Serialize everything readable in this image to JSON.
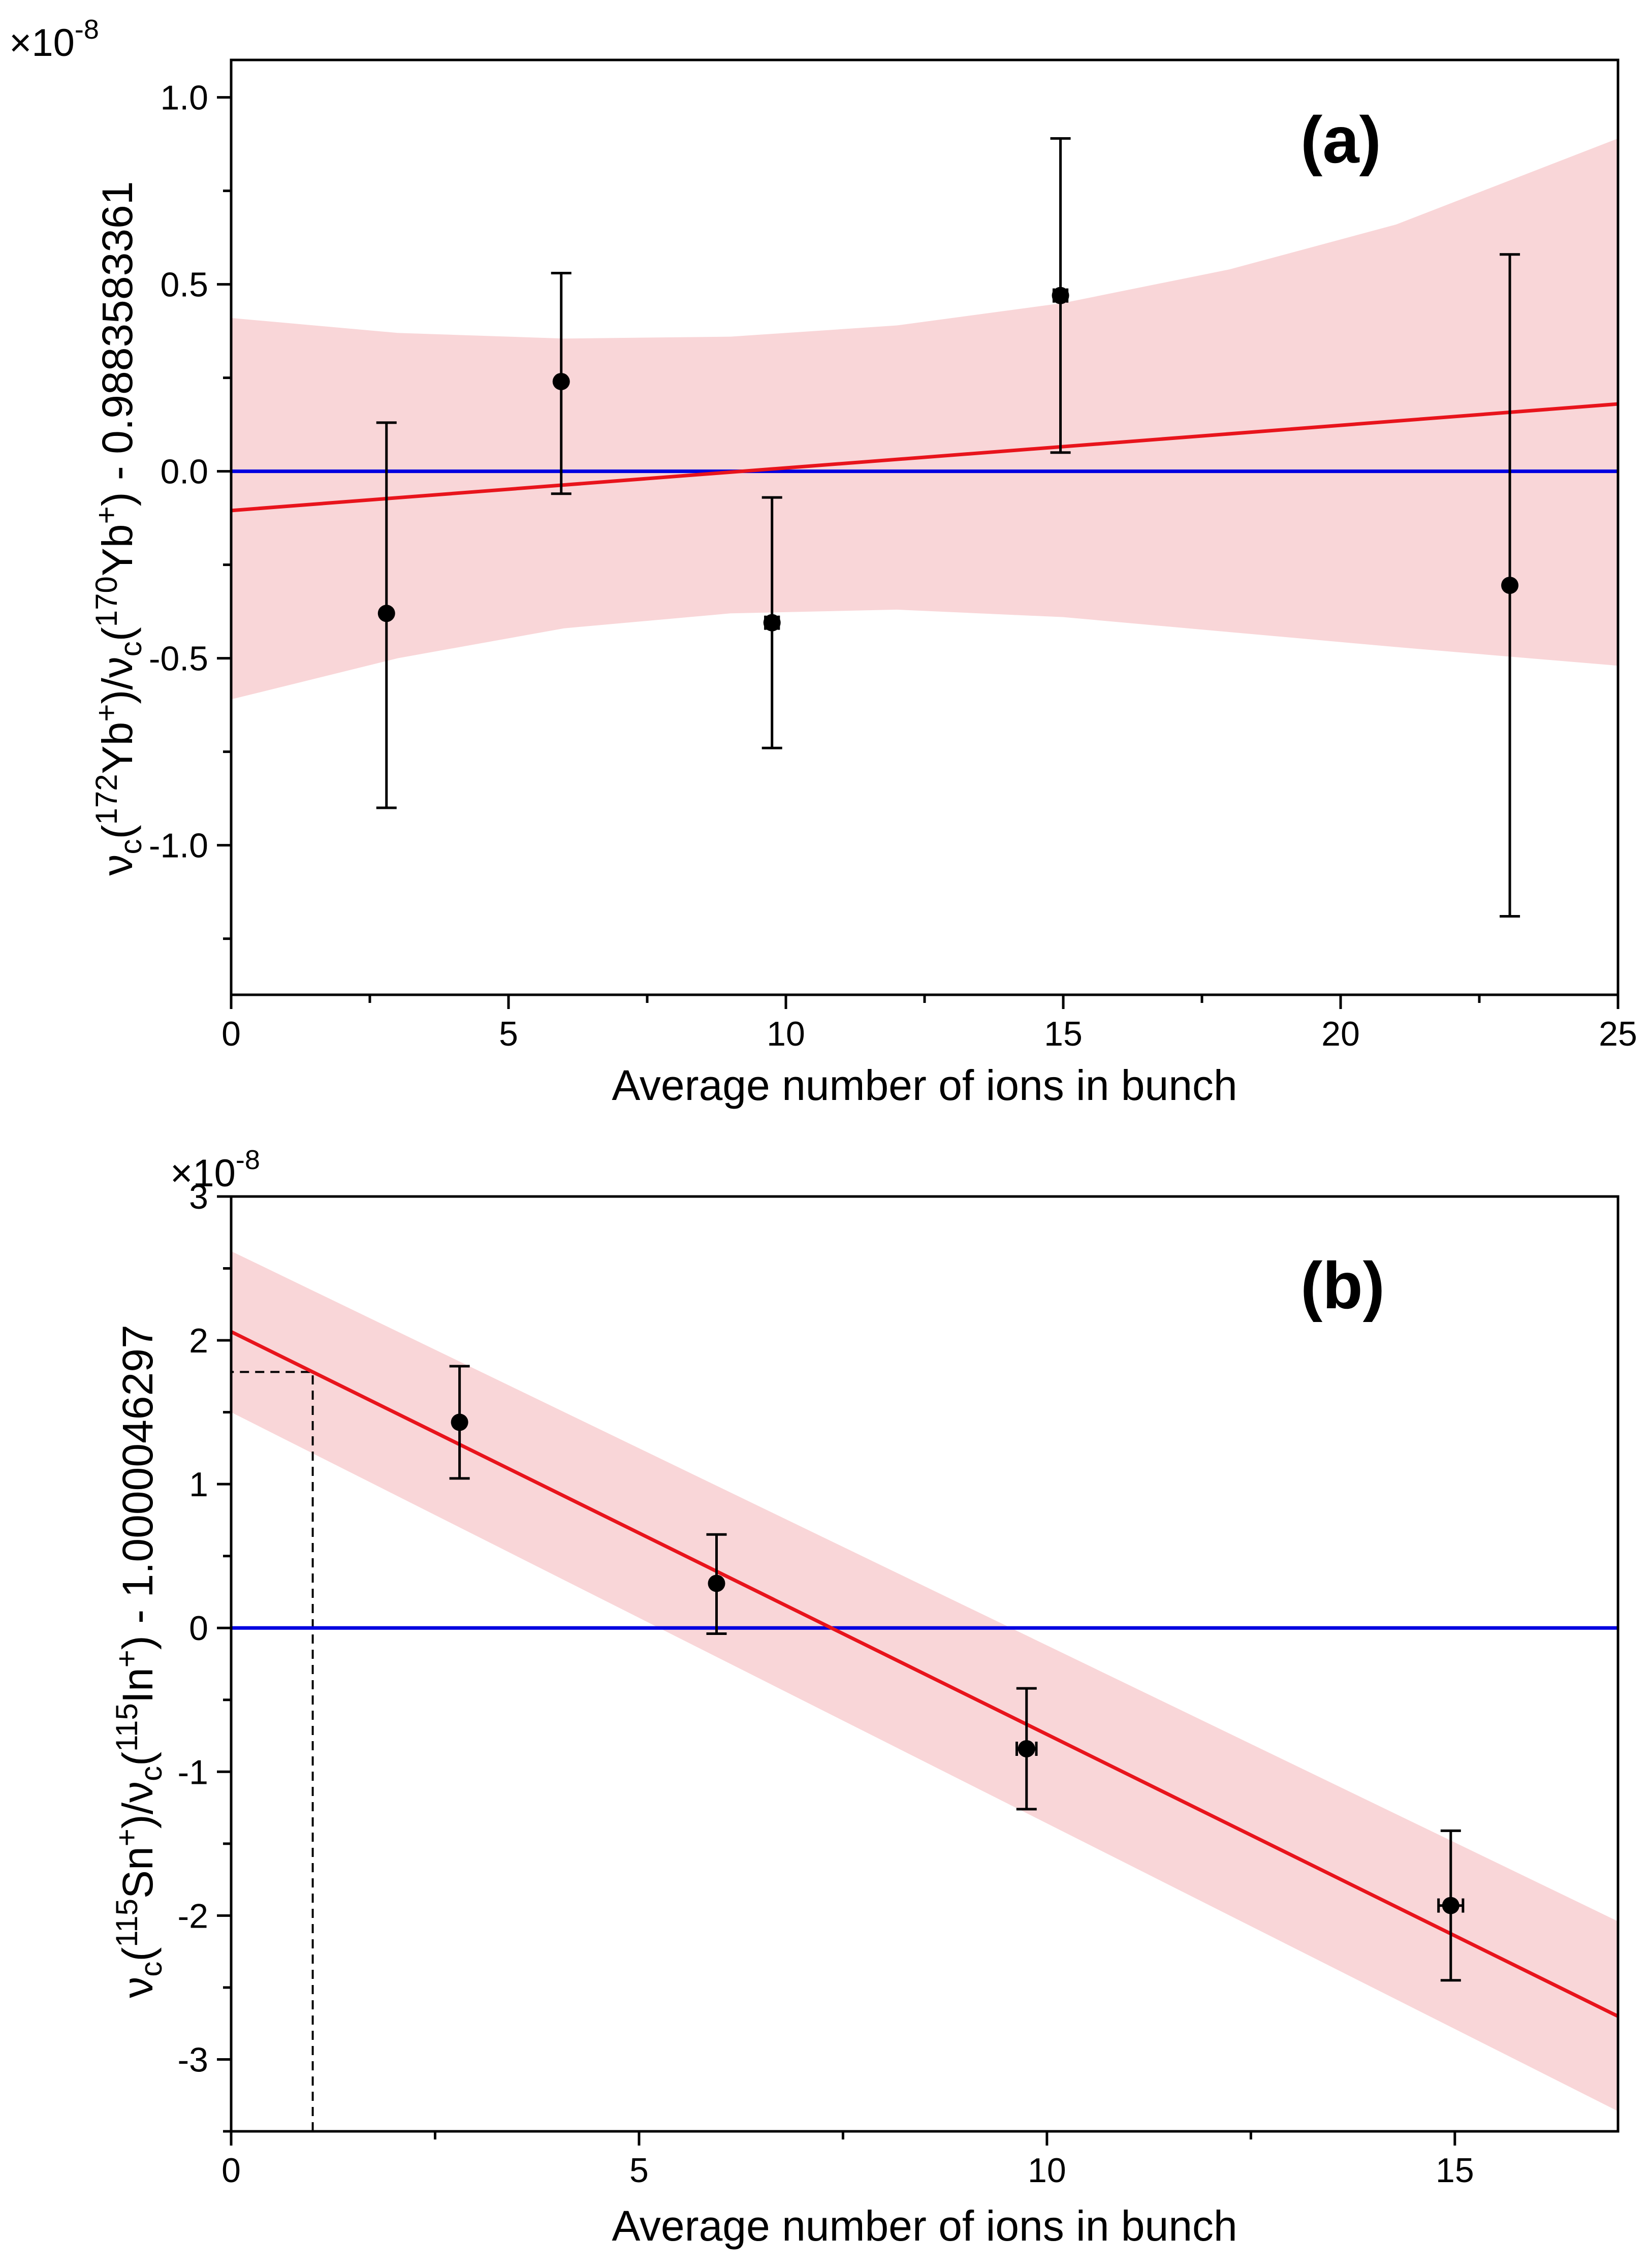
{
  "chart_data": [
    {
      "type": "scatter",
      "panel_label": "(a)",
      "multiplier": "×10",
      "multiplier_exponent": "-8",
      "xlabel": "Average number of ions in bunch",
      "ylabel": "νc(172Yb+)/νc(170Yb+) - 0.9883583361",
      "xlim": [
        0,
        25
      ],
      "ylim": [
        -1.4,
        1.1
      ],
      "x_ticks": [
        0,
        5,
        10,
        15,
        20,
        25
      ],
      "x_tick_labels": [
        "0",
        "5",
        "10",
        "15",
        "20",
        "25"
      ],
      "y_ticks": [
        -1.0,
        -0.5,
        0.0,
        0.5,
        1.0
      ],
      "y_tick_labels": [
        "-1.0",
        "-0.5",
        "0.0",
        "0.5",
        "1.0"
      ],
      "points": [
        {
          "x": 2.8,
          "y": -0.38,
          "y_low": -0.9,
          "y_high": 0.13,
          "x_err": 0
        },
        {
          "x": 5.95,
          "y": 0.24,
          "y_low": -0.06,
          "y_high": 0.53,
          "x_err": 0
        },
        {
          "x": 9.75,
          "y": -0.405,
          "y_low": -0.74,
          "y_high": -0.07,
          "x_err": 0.12
        },
        {
          "x": 14.95,
          "y": 0.47,
          "y_low": 0.05,
          "y_high": 0.89,
          "x_err": 0.12
        },
        {
          "x": 23.05,
          "y": -0.305,
          "y_low": -1.19,
          "y_high": 0.58,
          "x_err": 0
        }
      ],
      "fit_line": {
        "x": [
          0,
          25
        ],
        "y": [
          -0.105,
          0.18
        ],
        "color": "#e8141c"
      },
      "confidence_band": {
        "x": [
          0,
          3,
          6,
          9,
          12,
          15,
          18,
          21,
          25
        ],
        "upper": [
          0.41,
          0.37,
          0.355,
          0.36,
          0.39,
          0.45,
          0.54,
          0.66,
          0.89
        ],
        "lower": [
          -0.61,
          -0.5,
          -0.42,
          -0.38,
          -0.37,
          -0.39,
          -0.43,
          -0.47,
          -0.52
        ],
        "color": "#f9d6d8"
      },
      "reference_line": {
        "y": 0,
        "color": "#0000e0"
      }
    },
    {
      "type": "scatter",
      "panel_label": "(b)",
      "multiplier": "×10",
      "multiplier_exponent": "-8",
      "xlabel": "Average number of ions in bunch",
      "ylabel": "νc(115Sn+)/νc(115In+) - 1.0000046297",
      "xlim": [
        0,
        17
      ],
      "ylim": [
        -3.5,
        3.0
      ],
      "x_ticks": [
        0,
        5,
        10,
        15
      ],
      "x_tick_labels": [
        "0",
        "5",
        "10",
        "15"
      ],
      "y_ticks": [
        -3,
        -2,
        -1,
        0,
        1,
        2,
        3
      ],
      "y_tick_labels": [
        "-3",
        "-2",
        "-1",
        "0",
        "1",
        "2",
        "3"
      ],
      "points": [
        {
          "x": 2.8,
          "y": 1.43,
          "y_low": 1.04,
          "y_high": 1.82,
          "x_err": 0
        },
        {
          "x": 5.95,
          "y": 0.31,
          "y_low": -0.04,
          "y_high": 0.65,
          "x_err": 0
        },
        {
          "x": 9.75,
          "y": -0.84,
          "y_low": -1.26,
          "y_high": -0.42,
          "x_err": 0.12
        },
        {
          "x": 14.95,
          "y": -1.93,
          "y_low": -2.45,
          "y_high": -1.41,
          "x_err": 0.15
        }
      ],
      "fit_line": {
        "x": [
          0,
          17
        ],
        "y": [
          2.06,
          -2.7
        ],
        "color": "#e8141c"
      },
      "confidence_band": {
        "x": [
          0,
          17
        ],
        "upper": [
          2.62,
          -2.04
        ],
        "lower": [
          1.5,
          -3.36
        ],
        "color": "#f9d6d8"
      },
      "reference_line": {
        "y": 0,
        "color": "#0000e0"
      },
      "guide_lines": {
        "x": 1.0,
        "y": 1.78
      }
    }
  ]
}
